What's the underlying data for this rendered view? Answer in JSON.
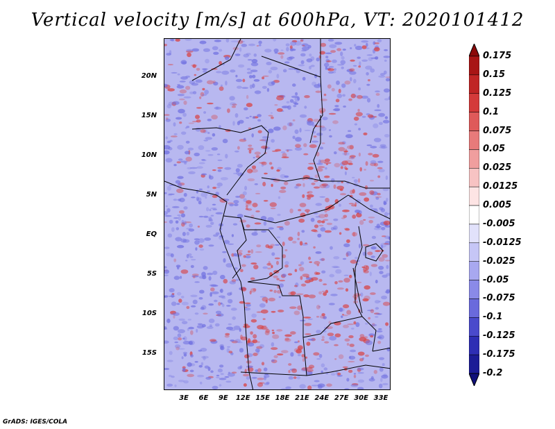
{
  "title": "Vertical velocity [m/s] at 600hPa, VT: 2020101412",
  "credit": "GrADS: IGES/COLA",
  "lat_labels": [
    "20N",
    "15N",
    "10N",
    "5N",
    "EQ",
    "5S",
    "10S",
    "15S"
  ],
  "lon_labels": [
    "3E",
    "6E",
    "9E",
    "12E",
    "15E",
    "18E",
    "21E",
    "24E",
    "27E",
    "30E",
    "33E"
  ],
  "colorbar": {
    "labels": [
      "0.175",
      "0.15",
      "0.125",
      "0.1",
      "0.075",
      "0.05",
      "0.025",
      "0.0125",
      "0.005",
      "-0.005",
      "-0.0125",
      "-0.025",
      "-0.05",
      "-0.075",
      "-0.1",
      "-0.125",
      "-0.175",
      "-0.2"
    ],
    "colors": [
      "#8b0a0a",
      "#a81515",
      "#c02525",
      "#d43a3a",
      "#df5a5a",
      "#e87a7a",
      "#f09e9e",
      "#f7c3c3",
      "#fde4e4",
      "#ffffff",
      "#e2e2fb",
      "#c6c6f6",
      "#a8a8f0",
      "#8a8ae8",
      "#6a6adc",
      "#4a4acc",
      "#2e2eb4",
      "#1c1c96",
      "#10107a"
    ]
  },
  "map": {
    "positive_color": "#d94040",
    "negative_color": "#7070e0",
    "background_color": "#b4b4ef"
  }
}
